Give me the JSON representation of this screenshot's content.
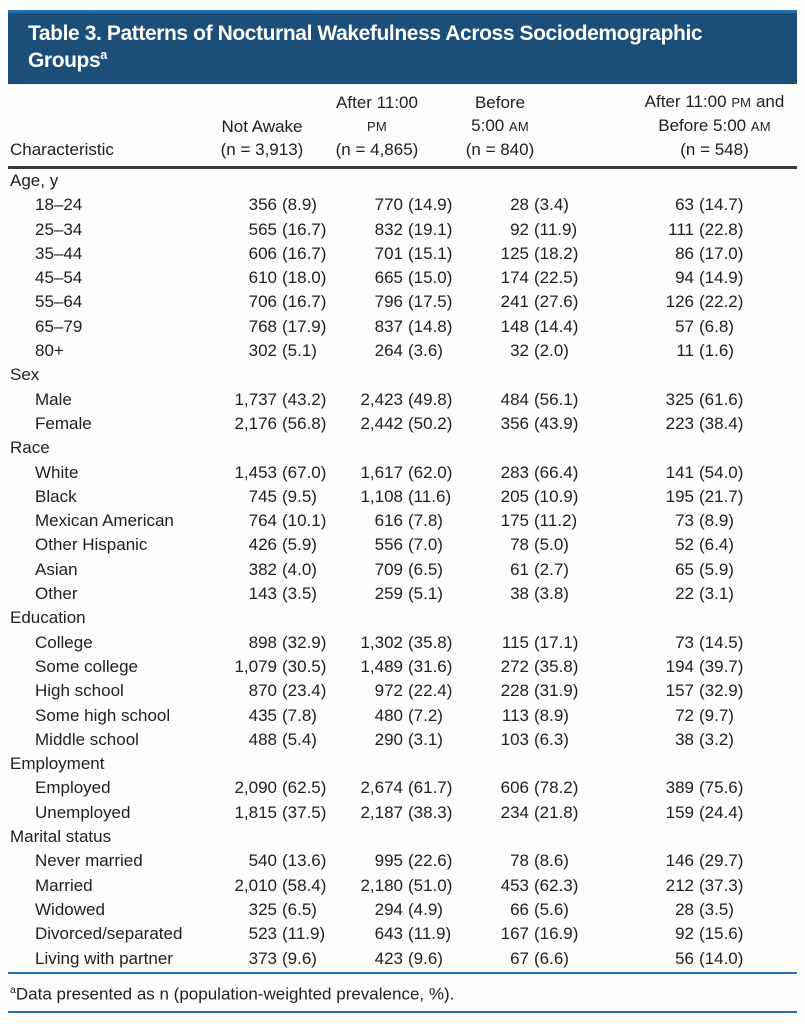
{
  "title": {
    "line1": "Table 3. Patterns of Nocturnal Wakefulness Across Sociodemographic",
    "line2": "Groups",
    "sup": "a"
  },
  "colors": {
    "title_bar_background": "#1b4e78",
    "accent_rule_blue": "#2271b3",
    "header_rule_dark": "#3a3a3a",
    "title_text": "#ffffff",
    "body_text": "#1f1f1f"
  },
  "header": {
    "characteristic": "Characteristic",
    "cols": [
      {
        "name": "not-awake",
        "lines": [
          [
            {
              "t": "Not Awake"
            }
          ],
          [
            {
              "t": "(n = 3,913)"
            }
          ]
        ]
      },
      {
        "name": "after-11pm",
        "lines": [
          [
            {
              "t": "After 11:00 "
            },
            {
              "t": "PM",
              "sc": true
            }
          ],
          [
            {
              "t": "(n = 4,865)"
            }
          ]
        ]
      },
      {
        "name": "before-5am",
        "lines": [
          [
            {
              "t": "Before 5:00 "
            },
            {
              "t": "AM",
              "sc": true
            }
          ],
          [
            {
              "t": "(n = 840)"
            }
          ]
        ]
      },
      {
        "name": "after-11pm-and-before-5am",
        "lines": [
          [
            {
              "t": "After 11:00 "
            },
            {
              "t": "PM",
              "sc": true
            },
            {
              "t": " and"
            }
          ],
          [
            {
              "t": "Before 5:00 "
            },
            {
              "t": "AM",
              "sc": true
            }
          ],
          [
            {
              "t": "(n = 548)"
            }
          ]
        ]
      }
    ]
  },
  "sections": [
    {
      "label": "Age, y",
      "rows": [
        {
          "label": "18–24",
          "cells": [
            "356 (8.9)",
            "770 (14.9)",
            "28 (3.4)",
            "63 (14.7)"
          ]
        },
        {
          "label": "25–34",
          "cells": [
            "565 (16.7)",
            "832 (19.1)",
            "92 (11.9)",
            "111 (22.8)"
          ]
        },
        {
          "label": "35–44",
          "cells": [
            "606 (16.7)",
            "701 (15.1)",
            "125 (18.2)",
            "86 (17.0)"
          ]
        },
        {
          "label": "45–54",
          "cells": [
            "610 (18.0)",
            "665 (15.0)",
            "174 (22.5)",
            "94 (14.9)"
          ]
        },
        {
          "label": "55–64",
          "cells": [
            "706 (16.7)",
            "796 (17.5)",
            "241 (27.6)",
            "126 (22.2)"
          ]
        },
        {
          "label": "65–79",
          "cells": [
            "768 (17.9)",
            "837 (14.8)",
            "148 (14.4)",
            "57 (6.8)"
          ]
        },
        {
          "label": "80+",
          "cells": [
            "302 (5.1)",
            "264 (3.6)",
            "32 (2.0)",
            "11 (1.6)"
          ]
        }
      ]
    },
    {
      "label": "Sex",
      "rows": [
        {
          "label": "Male",
          "cells": [
            "1,737 (43.2)",
            "2,423 (49.8)",
            "484 (56.1)",
            "325 (61.6)"
          ]
        },
        {
          "label": "Female",
          "cells": [
            "2,176 (56.8)",
            "2,442 (50.2)",
            "356 (43.9)",
            "223 (38.4)"
          ]
        }
      ]
    },
    {
      "label": "Race",
      "rows": [
        {
          "label": "White",
          "cells": [
            "1,453 (67.0)",
            "1,617 (62.0)",
            "283 (66.4)",
            "141 (54.0)"
          ]
        },
        {
          "label": "Black",
          "cells": [
            "745 (9.5)",
            "1,108 (11.6)",
            "205 (10.9)",
            "195 (21.7)"
          ]
        },
        {
          "label": "Mexican American",
          "cells": [
            "764 (10.1)",
            "616 (7.8)",
            "175 (11.2)",
            "73 (8.9)"
          ]
        },
        {
          "label": "Other Hispanic",
          "cells": [
            "426 (5.9)",
            "556 (7.0)",
            "78 (5.0)",
            "52 (6.4)"
          ]
        },
        {
          "label": "Asian",
          "cells": [
            "382 (4.0)",
            "709 (6.5)",
            "61 (2.7)",
            "65 (5.9)"
          ]
        },
        {
          "label": "Other",
          "cells": [
            "143 (3.5)",
            "259 (5.1)",
            "38 (3.8)",
            "22 (3.1)"
          ]
        }
      ]
    },
    {
      "label": "Education",
      "rows": [
        {
          "label": "College",
          "cells": [
            "898 (32.9)",
            "1,302 (35.8)",
            "115 (17.1)",
            "73 (14.5)"
          ]
        },
        {
          "label": "Some college",
          "cells": [
            "1,079 (30.5)",
            "1,489 (31.6)",
            "272 (35.8)",
            "194 (39.7)"
          ]
        },
        {
          "label": "High school",
          "cells": [
            "870 (23.4)",
            "972 (22.4)",
            "228 (31.9)",
            "157 (32.9)"
          ]
        },
        {
          "label": "Some high school",
          "cells": [
            "435 (7.8)",
            "480 (7.2)",
            "113 (8.9)",
            "72 (9.7)"
          ]
        },
        {
          "label": "Middle school",
          "cells": [
            "488 (5.4)",
            "290 (3.1)",
            "103 (6.3)",
            "38 (3.2)"
          ]
        }
      ]
    },
    {
      "label": "Employment",
      "rows": [
        {
          "label": "Employed",
          "cells": [
            "2,090 (62.5)",
            "2,674 (61.7)",
            "606 (78.2)",
            "389 (75.6)"
          ]
        },
        {
          "label": "Unemployed",
          "cells": [
            "1,815 (37.5)",
            "2,187 (38.3)",
            "234 (21.8)",
            "159 (24.4)"
          ]
        }
      ]
    },
    {
      "label": "Marital status",
      "rows": [
        {
          "label": "Never married",
          "cells": [
            "540 (13.6)",
            "995 (22.6)",
            "78 (8.6)",
            "146 (29.7)"
          ]
        },
        {
          "label": "Married",
          "cells": [
            "2,010 (58.4)",
            "2,180 (51.0)",
            "453 (62.3)",
            "212 (37.3)"
          ]
        },
        {
          "label": "Widowed",
          "cells": [
            "325 (6.5)",
            "294 (4.9)",
            "66 (5.6)",
            "28 (3.5)"
          ]
        },
        {
          "label": "Divorced/separated",
          "cells": [
            "523 (11.9)",
            "643 (11.9)",
            "167 (16.9)",
            "92 (15.6)"
          ]
        },
        {
          "label": "Living with partner",
          "cells": [
            "373 (9.6)",
            "423 (9.6)",
            "67 (6.6)",
            "56 (14.0)"
          ]
        }
      ]
    }
  ],
  "footnote": {
    "sup": "a",
    "text": "Data presented as n (population-weighted prevalence, %)."
  }
}
